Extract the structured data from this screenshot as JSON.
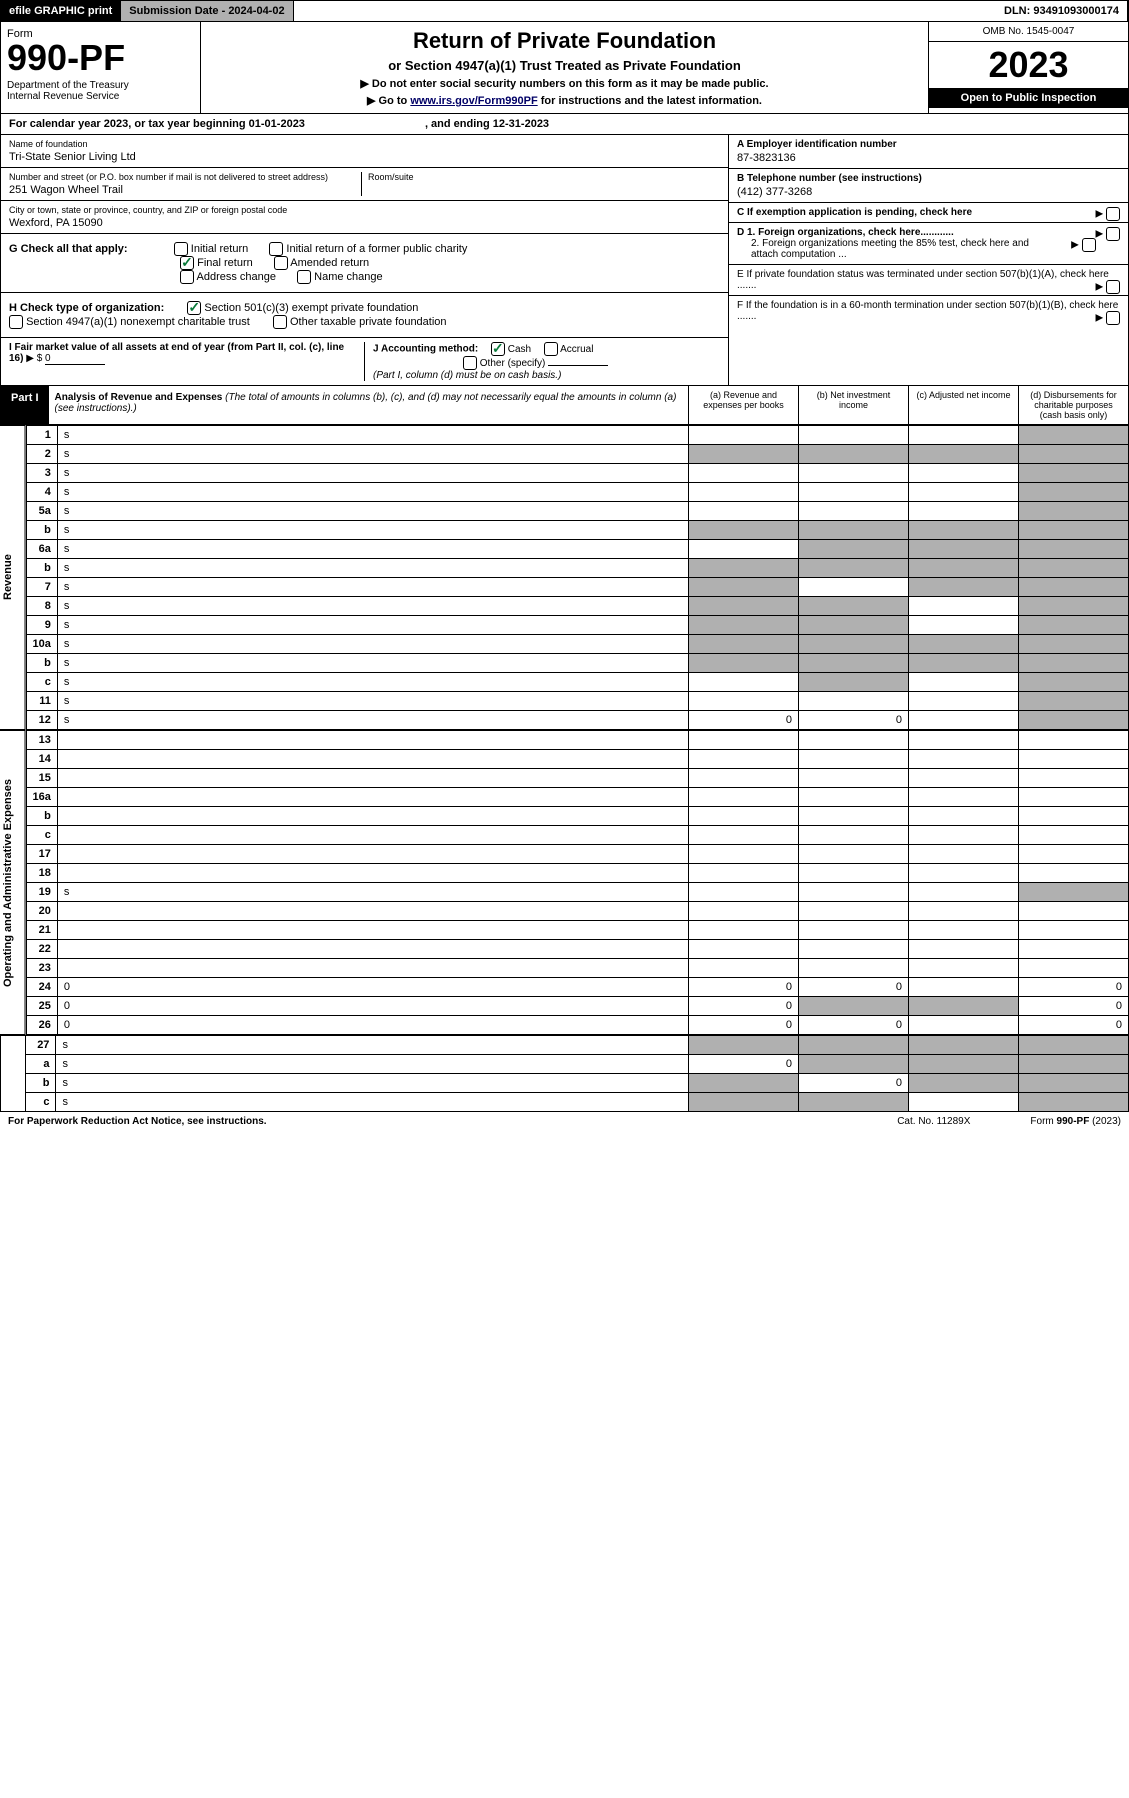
{
  "topbar": {
    "efile": "efile GRAPHIC print",
    "submission": "Submission Date - 2024-04-02",
    "dln": "DLN: 93491093000174"
  },
  "header": {
    "form_label": "Form",
    "form_no": "990-PF",
    "dept": "Department of the Treasury",
    "irs": "Internal Revenue Service",
    "title": "Return of Private Foundation",
    "subtitle": "or Section 4947(a)(1) Trust Treated as Private Foundation",
    "note1": "▶ Do not enter social security numbers on this form as it may be made public.",
    "note2_pre": "▶ Go to ",
    "note2_link": "www.irs.gov/Form990PF",
    "note2_post": " for instructions and the latest information.",
    "omb": "OMB No. 1545-0047",
    "year": "2023",
    "open": "Open to Public Inspection"
  },
  "calyear": {
    "pre": "For calendar year 2023, or tax year beginning ",
    "begin": "01-01-2023",
    "mid": ", and ending ",
    "end": "12-31-2023"
  },
  "info": {
    "name_lbl": "Name of foundation",
    "name": "Tri-State Senior Living Ltd",
    "addr_lbl": "Number and street (or P.O. box number if mail is not delivered to street address)",
    "addr": "251 Wagon Wheel Trail",
    "room_lbl": "Room/suite",
    "city_lbl": "City or town, state or province, country, and ZIP or foreign postal code",
    "city": "Wexford, PA  15090",
    "a_lbl": "A Employer identification number",
    "a_val": "87-3823136",
    "b_lbl": "B Telephone number (see instructions)",
    "b_val": "(412) 377-3268",
    "c_lbl": "C If exemption application is pending, check here",
    "d1_lbl": "D 1. Foreign organizations, check here............",
    "d2_lbl": "2. Foreign organizations meeting the 85% test, check here and attach computation ...",
    "e_lbl": "E  If private foundation status was terminated under section 507(b)(1)(A), check here .......",
    "f_lbl": "F  If the foundation is in a 60-month termination under section 507(b)(1)(B), check here ......."
  },
  "g": {
    "lbl": "G Check all that apply:",
    "opts": [
      "Initial return",
      "Final return",
      "Address change",
      "Initial return of a former public charity",
      "Amended return",
      "Name change"
    ]
  },
  "h": {
    "lbl": "H Check type of organization:",
    "o1": "Section 501(c)(3) exempt private foundation",
    "o2": "Section 4947(a)(1) nonexempt charitable trust",
    "o3": "Other taxable private foundation"
  },
  "i": {
    "lbl": "I Fair market value of all assets at end of year (from Part II, col. (c), line 16)",
    "val": "0"
  },
  "j": {
    "lbl": "J Accounting method:",
    "cash": "Cash",
    "accrual": "Accrual",
    "other": "Other (specify)",
    "note": "(Part I, column (d) must be on cash basis.)"
  },
  "part1": {
    "hdr": "Part I",
    "title": "Analysis of Revenue and Expenses",
    "note": "(The total of amounts in columns (b), (c), and (d) may not necessarily equal the amounts in column (a) (see instructions).)",
    "cols": [
      "(a)  Revenue and expenses per books",
      "(b)  Net investment income",
      "(c)  Adjusted net income",
      "(d)  Disbursements for charitable purposes (cash basis only)"
    ]
  },
  "side": {
    "rev": "Revenue",
    "exp": "Operating and Administrative Expenses"
  },
  "rows_rev": [
    {
      "n": "1",
      "d": "s",
      "a": "",
      "b": "",
      "c": ""
    },
    {
      "n": "2",
      "d": "s",
      "a": "s",
      "b": "s",
      "c": "s"
    },
    {
      "n": "3",
      "d": "s",
      "a": "",
      "b": "",
      "c": ""
    },
    {
      "n": "4",
      "d": "s",
      "a": "",
      "b": "",
      "c": ""
    },
    {
      "n": "5a",
      "d": "s",
      "a": "",
      "b": "",
      "c": ""
    },
    {
      "n": "b",
      "d": "s",
      "a": "s",
      "b": "s",
      "c": "s"
    },
    {
      "n": "6a",
      "d": "s",
      "a": "",
      "b": "s",
      "c": "s"
    },
    {
      "n": "b",
      "d": "s",
      "a": "s",
      "b": "s",
      "c": "s"
    },
    {
      "n": "7",
      "d": "s",
      "a": "s",
      "b": "",
      "c": "s"
    },
    {
      "n": "8",
      "d": "s",
      "a": "s",
      "b": "s",
      "c": ""
    },
    {
      "n": "9",
      "d": "s",
      "a": "s",
      "b": "s",
      "c": ""
    },
    {
      "n": "10a",
      "d": "s",
      "a": "s",
      "b": "s",
      "c": "s"
    },
    {
      "n": "b",
      "d": "s",
      "a": "s",
      "b": "s",
      "c": "s"
    },
    {
      "n": "c",
      "d": "s",
      "a": "",
      "b": "s",
      "c": ""
    },
    {
      "n": "11",
      "d": "s",
      "a": "",
      "b": "",
      "c": ""
    },
    {
      "n": "12",
      "d": "s",
      "a": "0",
      "b": "0",
      "c": ""
    }
  ],
  "rows_exp": [
    {
      "n": "13",
      "d": "",
      "a": "",
      "b": "",
      "c": ""
    },
    {
      "n": "14",
      "d": "",
      "a": "",
      "b": "",
      "c": ""
    },
    {
      "n": "15",
      "d": "",
      "a": "",
      "b": "",
      "c": ""
    },
    {
      "n": "16a",
      "d": "",
      "a": "",
      "b": "",
      "c": ""
    },
    {
      "n": "b",
      "d": "",
      "a": "",
      "b": "",
      "c": ""
    },
    {
      "n": "c",
      "d": "",
      "a": "",
      "b": "",
      "c": ""
    },
    {
      "n": "17",
      "d": "",
      "a": "",
      "b": "",
      "c": ""
    },
    {
      "n": "18",
      "d": "",
      "a": "",
      "b": "",
      "c": ""
    },
    {
      "n": "19",
      "d": "s",
      "a": "",
      "b": "",
      "c": ""
    },
    {
      "n": "20",
      "d": "",
      "a": "",
      "b": "",
      "c": ""
    },
    {
      "n": "21",
      "d": "",
      "a": "",
      "b": "",
      "c": ""
    },
    {
      "n": "22",
      "d": "",
      "a": "",
      "b": "",
      "c": ""
    },
    {
      "n": "23",
      "d": "",
      "a": "",
      "b": "",
      "c": ""
    },
    {
      "n": "24",
      "d": "0",
      "a": "0",
      "b": "0",
      "c": ""
    },
    {
      "n": "25",
      "d": "0",
      "a": "0",
      "b": "s",
      "c": "s"
    },
    {
      "n": "26",
      "d": "0",
      "a": "0",
      "b": "0",
      "c": ""
    }
  ],
  "rows_bot": [
    {
      "n": "27",
      "d": "s",
      "a": "s",
      "b": "s",
      "c": "s"
    },
    {
      "n": "a",
      "d": "s",
      "a": "0",
      "b": "s",
      "c": "s"
    },
    {
      "n": "b",
      "d": "s",
      "a": "s",
      "b": "0",
      "c": "s"
    },
    {
      "n": "c",
      "d": "s",
      "a": "s",
      "b": "s",
      "c": ""
    }
  ],
  "footer": {
    "left": "For Paperwork Reduction Act Notice, see instructions.",
    "mid": "Cat. No. 11289X",
    "right": "Form 990-PF (2023)"
  }
}
